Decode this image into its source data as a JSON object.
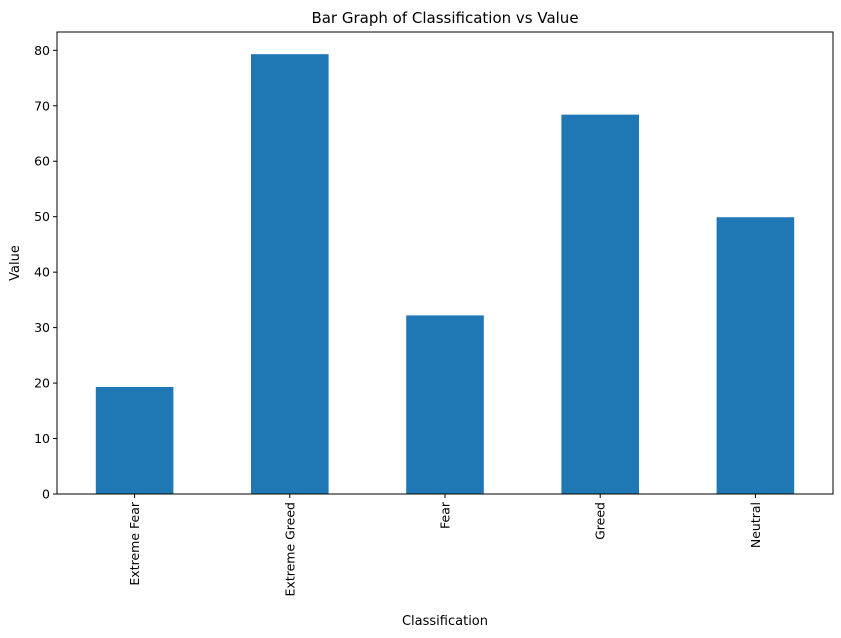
{
  "chart_data": {
    "type": "bar",
    "title": "Bar Graph of Classification vs Value",
    "xlabel": "Classification",
    "ylabel": "Value",
    "categories": [
      "Extreme Fear",
      "Extreme Greed",
      "Fear",
      "Greed",
      "Neutral"
    ],
    "values": [
      19.3,
      79.3,
      32.2,
      68.4,
      49.9
    ],
    "ylim": [
      0,
      83.3
    ],
    "yticks": [
      0,
      10,
      20,
      30,
      40,
      50,
      60,
      70,
      80
    ],
    "grid": false,
    "legend": "none",
    "bar_color": "#1f77b4"
  }
}
